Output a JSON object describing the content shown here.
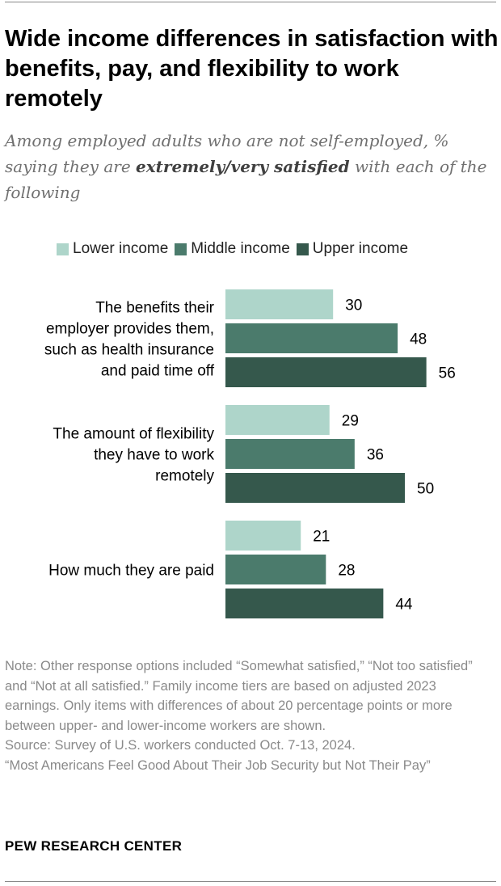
{
  "title": "Wide income differences in satisfaction with benefits, pay, and flexibility to work remotely",
  "subtitle": {
    "before": "Among employed adults who are not self-employed, % saying they are ",
    "emphasis": "extremely/very satisfied",
    "after": " with each of the following"
  },
  "colors": {
    "lower": "#aed5ca",
    "middle": "#4b7b6c",
    "upper": "#35584c"
  },
  "chart_data": {
    "type": "bar",
    "orientation": "horizontal",
    "categories": [
      [
        "The benefits their",
        "employer provides them,",
        "such as health insurance",
        "and paid time off"
      ],
      [
        "The amount of flexibility",
        "they have to work",
        "remotely"
      ],
      [
        "How much they are paid"
      ]
    ],
    "series": [
      {
        "name": "Lower income",
        "values": [
          30,
          29,
          21
        ]
      },
      {
        "name": "Middle income",
        "values": [
          48,
          36,
          28
        ]
      },
      {
        "name": "Upper income",
        "values": [
          56,
          50,
          44
        ]
      }
    ],
    "xlim": [
      0,
      60
    ],
    "grid": false,
    "legend": "top",
    "title": "",
    "xlabel": "",
    "ylabel": ""
  },
  "notes": {
    "note": "Note: Other response options included “Somewhat satisfied,” “Not too satisfied” and “Not at all satisfied.” Family income tiers are based on adjusted 2023 earnings. Only items with differences of about 20 percentage points or more between upper- and lower-income workers are shown.",
    "source": "Source: Survey of U.S. workers conducted Oct. 7-13, 2024.",
    "report": "“Most Americans Feel Good About Their Job Security but Not Their Pay”"
  },
  "footer": "PEW RESEARCH CENTER"
}
